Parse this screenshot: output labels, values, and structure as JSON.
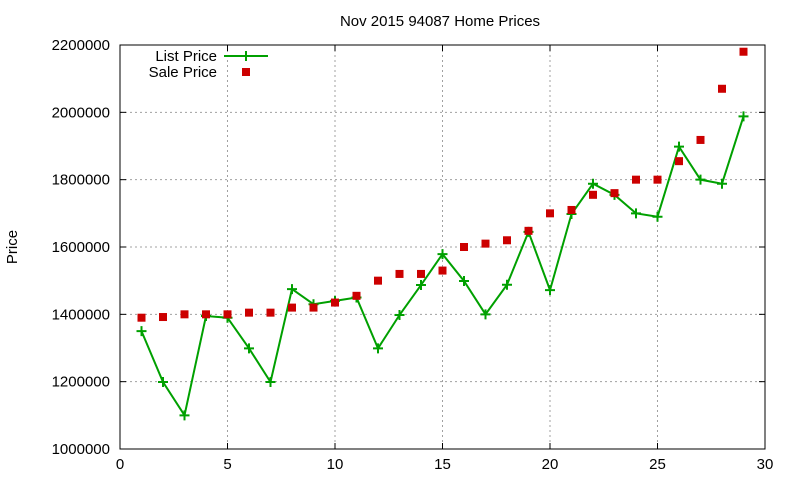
{
  "chart_data": {
    "type": "line",
    "title": "Nov 2015 94087 Home Prices",
    "xlabel": "",
    "ylabel": "Price",
    "xlim": [
      0,
      30
    ],
    "ylim": [
      1000000,
      2200000
    ],
    "xticks": [
      0,
      5,
      10,
      15,
      20,
      25,
      30
    ],
    "yticks": [
      1000000,
      1200000,
      1400000,
      1600000,
      1800000,
      2000000,
      2200000
    ],
    "grid": true,
    "legend_position": "top-left",
    "x": [
      1,
      2,
      3,
      4,
      5,
      6,
      7,
      8,
      9,
      10,
      11,
      12,
      13,
      14,
      15,
      16,
      17,
      18,
      19,
      20,
      21,
      22,
      23,
      24,
      25,
      26,
      27,
      28,
      29
    ],
    "series": [
      {
        "name": "List Price",
        "style": "linespoints",
        "color": "#00a000",
        "values": [
          1350000,
          1199000,
          1100000,
          1395000,
          1390000,
          1299000,
          1199000,
          1475000,
          1430000,
          1440000,
          1450000,
          1299000,
          1398000,
          1487000,
          1579000,
          1499000,
          1400000,
          1488000,
          1645000,
          1472000,
          1698000,
          1788000,
          1755000,
          1700000,
          1690000,
          1898000,
          1800000,
          1788000,
          1988000
        ]
      },
      {
        "name": "Sale Price",
        "style": "points",
        "color": "#cc0000",
        "values": [
          1390000,
          1392000,
          1400000,
          1400000,
          1400000,
          1405000,
          1405000,
          1420000,
          1420000,
          1435000,
          1455000,
          1500000,
          1520000,
          1520000,
          1530000,
          1600000,
          1610000,
          1620000,
          1648000,
          1700000,
          1710000,
          1755000,
          1760000,
          1800000,
          1800000,
          1855000,
          1918000,
          2070000,
          2180000
        ]
      }
    ]
  }
}
